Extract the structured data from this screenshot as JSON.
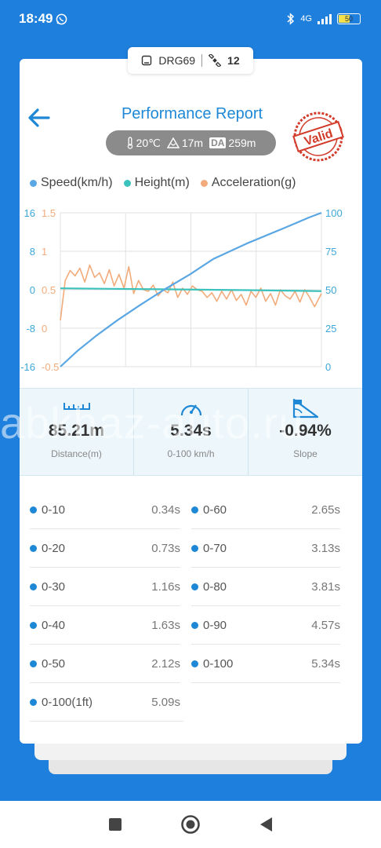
{
  "status": {
    "time": "18:49",
    "network": "4G",
    "battery": "50"
  },
  "device": {
    "name": "DRG69",
    "satellites": "12"
  },
  "header": {
    "title": "Performance Report",
    "stamp_text": "Valid"
  },
  "conditions": {
    "temperature": "20℃",
    "altitude": "17m",
    "da_label": "DA",
    "density_altitude": "259m"
  },
  "chart_data": {
    "type": "line",
    "legend": [
      "Speed(km/h)",
      "Height(m)",
      "Acceleration(g)"
    ],
    "colors": {
      "speed": "#5aa7e4",
      "height": "#3cc2bd",
      "accel": "#f2ab7a"
    },
    "left_axis_height": {
      "ticks": [
        "16",
        "8",
        "0",
        "-8",
        "-16"
      ],
      "range": [
        -16,
        16
      ]
    },
    "left_axis_accel": {
      "ticks": [
        "1.5",
        "1",
        "0.5",
        "0",
        "-0.5"
      ],
      "range": [
        -0.5,
        1.5
      ]
    },
    "right_axis_speed": {
      "ticks": [
        "100",
        "75",
        "50",
        "25",
        "0"
      ],
      "range": [
        0,
        100
      ]
    },
    "x_range": [
      0,
      5.34
    ],
    "series": [
      {
        "name": "Speed(km/h)",
        "axis": "right",
        "x": [
          0,
          0.34,
          0.73,
          1.16,
          1.63,
          2.12,
          2.65,
          3.13,
          3.81,
          4.57,
          5.09,
          5.34
        ],
        "values": [
          0,
          10,
          20,
          30,
          40,
          50,
          60,
          70,
          80,
          90,
          97,
          100
        ]
      },
      {
        "name": "Height(m)",
        "axis": "left-height",
        "x": [
          0,
          1,
          2,
          3,
          4,
          5.34
        ],
        "values": [
          0.3,
          0.2,
          0.1,
          0.0,
          -0.1,
          -0.3
        ]
      },
      {
        "name": "Acceleration(g)",
        "axis": "left-accel",
        "x": [
          0,
          0.1,
          0.2,
          0.3,
          0.4,
          0.5,
          0.6,
          0.7,
          0.8,
          0.9,
          1.0,
          1.1,
          1.2,
          1.3,
          1.4,
          1.5,
          1.6,
          1.7,
          1.8,
          1.9,
          2.0,
          2.1,
          2.2,
          2.3,
          2.4,
          2.5,
          2.6,
          2.7,
          2.8,
          2.9,
          3.0,
          3.1,
          3.2,
          3.3,
          3.4,
          3.5,
          3.6,
          3.7,
          3.8,
          3.9,
          4.0,
          4.1,
          4.2,
          4.3,
          4.4,
          4.5,
          4.6,
          4.7,
          4.8,
          4.9,
          5.0,
          5.1,
          5.2,
          5.34
        ],
        "values": [
          0.1,
          0.62,
          0.75,
          0.68,
          0.78,
          0.6,
          0.82,
          0.66,
          0.72,
          0.58,
          0.76,
          0.55,
          0.7,
          0.52,
          0.8,
          0.45,
          0.62,
          0.5,
          0.48,
          0.56,
          0.42,
          0.5,
          0.46,
          0.6,
          0.4,
          0.52,
          0.44,
          0.55,
          0.5,
          0.48,
          0.4,
          0.46,
          0.35,
          0.48,
          0.38,
          0.5,
          0.36,
          0.44,
          0.3,
          0.48,
          0.4,
          0.52,
          0.35,
          0.45,
          0.3,
          0.5,
          0.42,
          0.38,
          0.48,
          0.34,
          0.5,
          0.4,
          0.28,
          0.45
        ]
      }
    ]
  },
  "stats": [
    {
      "value": "85.21m",
      "label": "Distance(m)",
      "icon": "ruler-icon"
    },
    {
      "value": "5.34s",
      "label": "0-100 km/h",
      "icon": "speedometer-icon"
    },
    {
      "value": "-0.94%",
      "label": "Slope",
      "icon": "slope-icon"
    }
  ],
  "splits": [
    {
      "label": "0-10",
      "time": "0.34s"
    },
    {
      "label": "0-20",
      "time": "0.73s"
    },
    {
      "label": "0-30",
      "time": "1.16s"
    },
    {
      "label": "0-40",
      "time": "1.63s"
    },
    {
      "label": "0-50",
      "time": "2.12s"
    },
    {
      "label": "0-100(1ft)",
      "time": "5.09s"
    },
    {
      "label": "0-60",
      "time": "2.65s"
    },
    {
      "label": "0-70",
      "time": "3.13s"
    },
    {
      "label": "0-80",
      "time": "3.81s"
    },
    {
      "label": "0-90",
      "time": "4.57s"
    },
    {
      "label": "0-100",
      "time": "5.34s"
    }
  ],
  "watermark": "abkhaz-auto.ru"
}
